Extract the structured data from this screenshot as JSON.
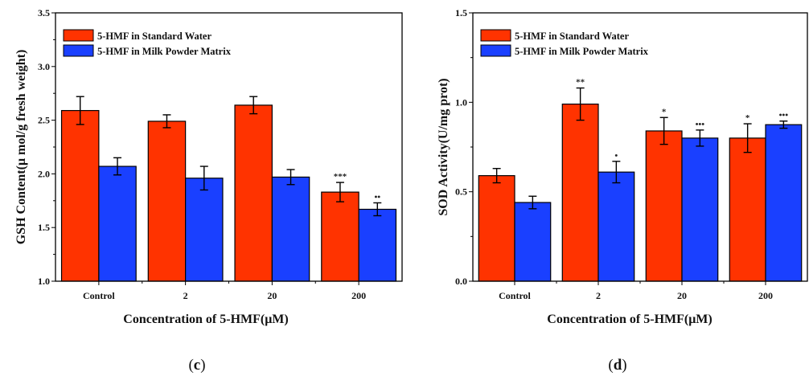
{
  "chart_data": [
    {
      "type": "bar",
      "panel_label": "c",
      "categories": [
        "Control",
        "2",
        "20",
        "200"
      ],
      "xlabel": "Concentration of 5-HMF(μM)",
      "ylabel": "GSH Content(μ mol/g fresh weight)",
      "ylim": [
        1.0,
        3.5
      ],
      "yticks": [
        "1.0",
        "1.5",
        "2.0",
        "2.5",
        "3.0",
        "3.5"
      ],
      "legend_position": "top-left",
      "series": [
        {
          "name": "5-HMF in Standard Water",
          "color": "#ff3300",
          "values": [
            2.59,
            2.49,
            2.64,
            1.83
          ],
          "errors": [
            0.13,
            0.06,
            0.08,
            0.09
          ],
          "annotations": [
            "",
            "",
            "",
            "***"
          ]
        },
        {
          "name": "5-HMF in Milk Powder Matrix",
          "color": "#1a40ff",
          "values": [
            2.07,
            1.96,
            1.97,
            1.67
          ],
          "errors": [
            0.08,
            0.11,
            0.07,
            0.06
          ],
          "annotations": [
            "",
            "",
            "",
            "••"
          ]
        }
      ]
    },
    {
      "type": "bar",
      "panel_label": "d",
      "categories": [
        "Control",
        "2",
        "20",
        "200"
      ],
      "xlabel": "Concentration of 5-HMF(μM)",
      "ylabel": "SOD Activity(U/mg prot)",
      "ylim": [
        0.0,
        1.5
      ],
      "yticks": [
        "0.0",
        "0.5",
        "1.0",
        "1.5"
      ],
      "legend_position": "top-left",
      "series": [
        {
          "name": "5-HMF in Standard Water",
          "color": "#ff3300",
          "values": [
            0.59,
            0.99,
            0.84,
            0.8
          ],
          "errors": [
            0.04,
            0.09,
            0.075,
            0.08
          ],
          "annotations": [
            "",
            "**",
            "*",
            "*"
          ]
        },
        {
          "name": "5-HMF in Milk Powder Matrix",
          "color": "#1a40ff",
          "values": [
            0.44,
            0.61,
            0.8,
            0.875
          ],
          "errors": [
            0.035,
            0.06,
            0.045,
            0.02
          ],
          "annotations": [
            "",
            "•",
            "•••",
            "•••"
          ]
        }
      ]
    }
  ]
}
